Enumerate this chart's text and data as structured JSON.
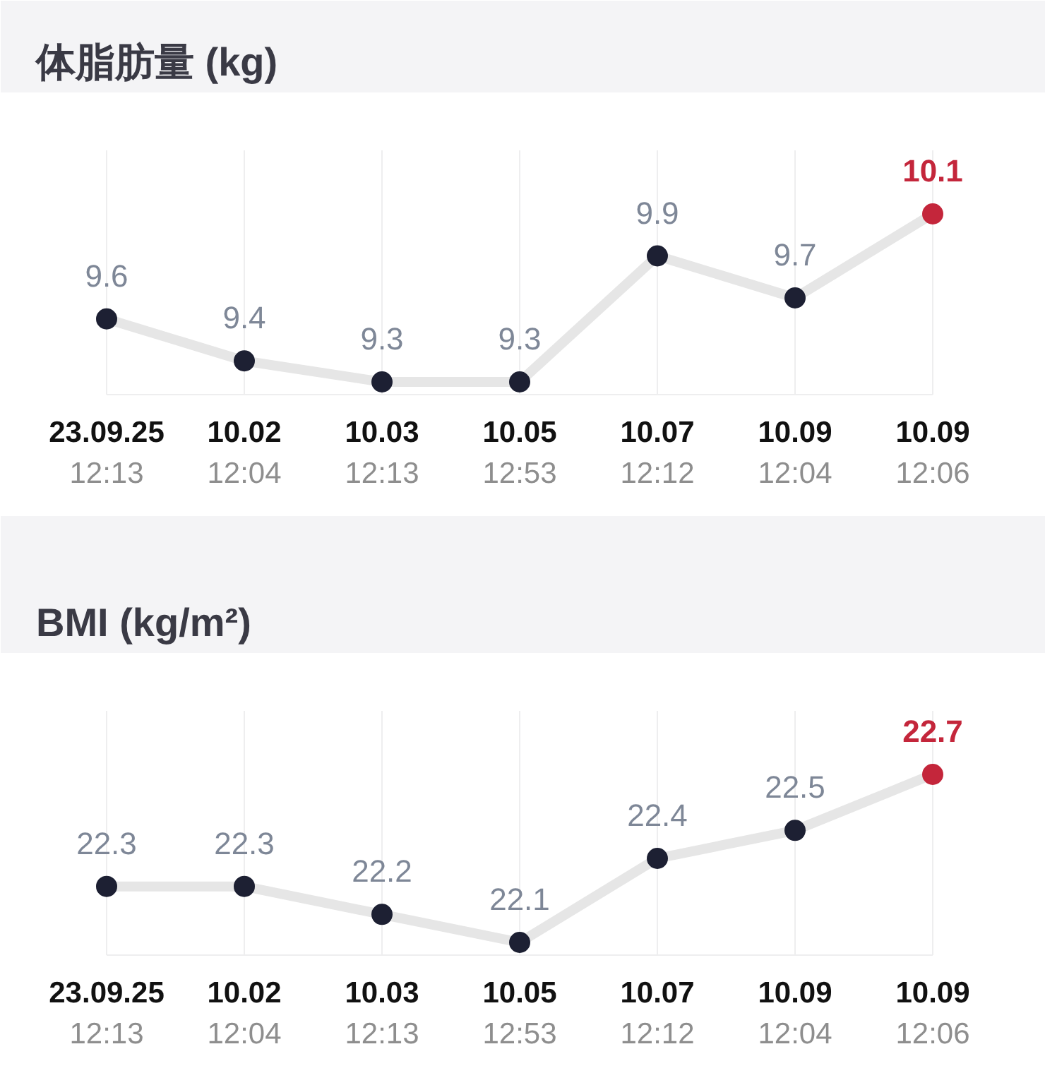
{
  "chart_data": [
    {
      "type": "line",
      "title": "体脂肪量 (kg)",
      "categories": [
        "23.09.25\n12:13",
        "10.02\n12:04",
        "10.03\n12:13",
        "10.05\n12:53",
        "10.07\n12:12",
        "10.09\n12:04",
        "10.09\n12:06"
      ],
      "series": [
        {
          "color": "#e6e6e6",
          "colors": [
            "#1d2033",
            "#1d2033",
            "#1d2033",
            "#1d2033",
            "#1d2033",
            "#1d2033",
            "#c4263b"
          ],
          "values": [
            9.6,
            9.4,
            9.3,
            9.3,
            9.9,
            9.7,
            10.1
          ]
        }
      ],
      "data_labels": true,
      "grid": "x",
      "marker": "circle"
    },
    {
      "type": "line",
      "title": "BMI (kg/m²)",
      "categories": [
        "23.09.25\n12:13",
        "10.02\n12:04",
        "10.03\n12:13",
        "10.05\n12:53",
        "10.07\n12:12",
        "10.09\n12:04",
        "10.09\n12:06"
      ],
      "series": [
        {
          "color": "#e6e6e6",
          "colors": [
            "#1d2033",
            "#1d2033",
            "#1d2033",
            "#1d2033",
            "#1d2033",
            "#1d2033",
            "#c4263b"
          ],
          "values": [
            22.3,
            22.3,
            22.2,
            22.1,
            22.4,
            22.5,
            22.7
          ]
        }
      ],
      "data_labels": true,
      "grid": "x",
      "marker": "circle"
    }
  ]
}
